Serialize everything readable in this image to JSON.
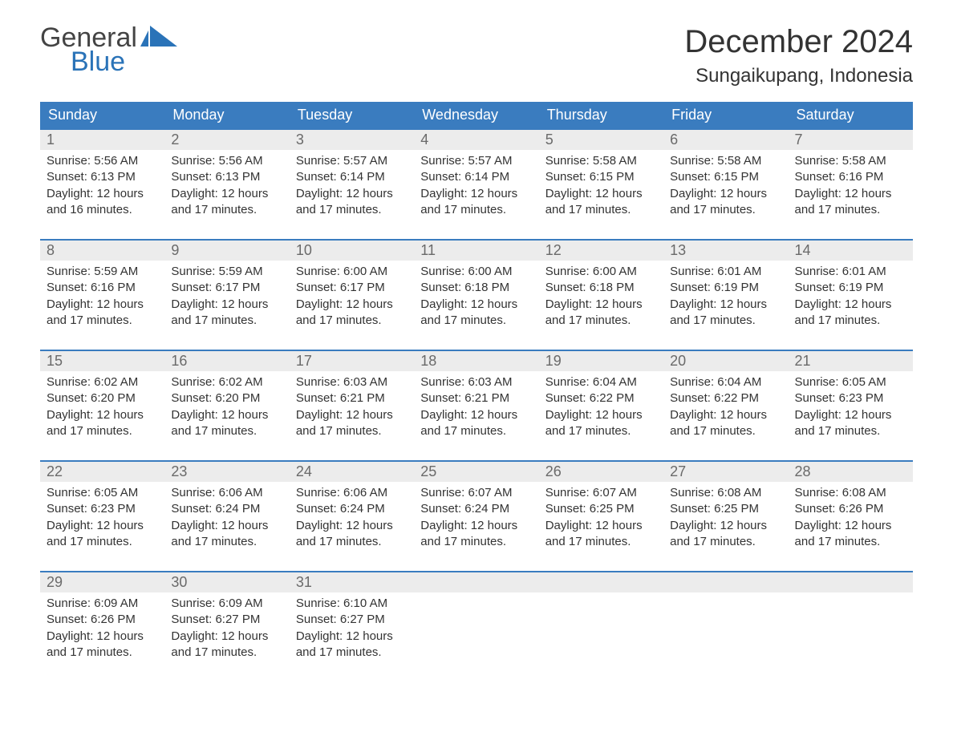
{
  "brand": {
    "word1": "General",
    "word2": "Blue"
  },
  "title": "December 2024",
  "location": "Sungaikupang, Indonesia",
  "colors": {
    "header_bg": "#3a7cbf",
    "header_text": "#ffffff",
    "daynum_bg": "#ececec",
    "daynum_text": "#6a6a6a",
    "week_border": "#3a7cbf",
    "body_text": "#333333",
    "brand_blue": "#2a73b8",
    "brand_gray": "#444444",
    "page_bg": "#ffffff"
  },
  "typography": {
    "title_fontsize_pt": 30,
    "location_fontsize_pt": 18,
    "header_fontsize_pt": 14,
    "daynum_fontsize_pt": 14,
    "detail_fontsize_pt": 11,
    "font_family": "Arial"
  },
  "layout": {
    "columns": 7,
    "rows": 5,
    "week_starts": "Sunday",
    "aspect_w": 1188,
    "aspect_h": 918
  },
  "weekdays": [
    "Sunday",
    "Monday",
    "Tuesday",
    "Wednesday",
    "Thursday",
    "Friday",
    "Saturday"
  ],
  "days": [
    {
      "n": "1",
      "sunrise": "Sunrise: 5:56 AM",
      "sunset": "Sunset: 6:13 PM",
      "daylight1": "Daylight: 12 hours",
      "daylight2": "and 16 minutes."
    },
    {
      "n": "2",
      "sunrise": "Sunrise: 5:56 AM",
      "sunset": "Sunset: 6:13 PM",
      "daylight1": "Daylight: 12 hours",
      "daylight2": "and 17 minutes."
    },
    {
      "n": "3",
      "sunrise": "Sunrise: 5:57 AM",
      "sunset": "Sunset: 6:14 PM",
      "daylight1": "Daylight: 12 hours",
      "daylight2": "and 17 minutes."
    },
    {
      "n": "4",
      "sunrise": "Sunrise: 5:57 AM",
      "sunset": "Sunset: 6:14 PM",
      "daylight1": "Daylight: 12 hours",
      "daylight2": "and 17 minutes."
    },
    {
      "n": "5",
      "sunrise": "Sunrise: 5:58 AM",
      "sunset": "Sunset: 6:15 PM",
      "daylight1": "Daylight: 12 hours",
      "daylight2": "and 17 minutes."
    },
    {
      "n": "6",
      "sunrise": "Sunrise: 5:58 AM",
      "sunset": "Sunset: 6:15 PM",
      "daylight1": "Daylight: 12 hours",
      "daylight2": "and 17 minutes."
    },
    {
      "n": "7",
      "sunrise": "Sunrise: 5:58 AM",
      "sunset": "Sunset: 6:16 PM",
      "daylight1": "Daylight: 12 hours",
      "daylight2": "and 17 minutes."
    },
    {
      "n": "8",
      "sunrise": "Sunrise: 5:59 AM",
      "sunset": "Sunset: 6:16 PM",
      "daylight1": "Daylight: 12 hours",
      "daylight2": "and 17 minutes."
    },
    {
      "n": "9",
      "sunrise": "Sunrise: 5:59 AM",
      "sunset": "Sunset: 6:17 PM",
      "daylight1": "Daylight: 12 hours",
      "daylight2": "and 17 minutes."
    },
    {
      "n": "10",
      "sunrise": "Sunrise: 6:00 AM",
      "sunset": "Sunset: 6:17 PM",
      "daylight1": "Daylight: 12 hours",
      "daylight2": "and 17 minutes."
    },
    {
      "n": "11",
      "sunrise": "Sunrise: 6:00 AM",
      "sunset": "Sunset: 6:18 PM",
      "daylight1": "Daylight: 12 hours",
      "daylight2": "and 17 minutes."
    },
    {
      "n": "12",
      "sunrise": "Sunrise: 6:00 AM",
      "sunset": "Sunset: 6:18 PM",
      "daylight1": "Daylight: 12 hours",
      "daylight2": "and 17 minutes."
    },
    {
      "n": "13",
      "sunrise": "Sunrise: 6:01 AM",
      "sunset": "Sunset: 6:19 PM",
      "daylight1": "Daylight: 12 hours",
      "daylight2": "and 17 minutes."
    },
    {
      "n": "14",
      "sunrise": "Sunrise: 6:01 AM",
      "sunset": "Sunset: 6:19 PM",
      "daylight1": "Daylight: 12 hours",
      "daylight2": "and 17 minutes."
    },
    {
      "n": "15",
      "sunrise": "Sunrise: 6:02 AM",
      "sunset": "Sunset: 6:20 PM",
      "daylight1": "Daylight: 12 hours",
      "daylight2": "and 17 minutes."
    },
    {
      "n": "16",
      "sunrise": "Sunrise: 6:02 AM",
      "sunset": "Sunset: 6:20 PM",
      "daylight1": "Daylight: 12 hours",
      "daylight2": "and 17 minutes."
    },
    {
      "n": "17",
      "sunrise": "Sunrise: 6:03 AM",
      "sunset": "Sunset: 6:21 PM",
      "daylight1": "Daylight: 12 hours",
      "daylight2": "and 17 minutes."
    },
    {
      "n": "18",
      "sunrise": "Sunrise: 6:03 AM",
      "sunset": "Sunset: 6:21 PM",
      "daylight1": "Daylight: 12 hours",
      "daylight2": "and 17 minutes."
    },
    {
      "n": "19",
      "sunrise": "Sunrise: 6:04 AM",
      "sunset": "Sunset: 6:22 PM",
      "daylight1": "Daylight: 12 hours",
      "daylight2": "and 17 minutes."
    },
    {
      "n": "20",
      "sunrise": "Sunrise: 6:04 AM",
      "sunset": "Sunset: 6:22 PM",
      "daylight1": "Daylight: 12 hours",
      "daylight2": "and 17 minutes."
    },
    {
      "n": "21",
      "sunrise": "Sunrise: 6:05 AM",
      "sunset": "Sunset: 6:23 PM",
      "daylight1": "Daylight: 12 hours",
      "daylight2": "and 17 minutes."
    },
    {
      "n": "22",
      "sunrise": "Sunrise: 6:05 AM",
      "sunset": "Sunset: 6:23 PM",
      "daylight1": "Daylight: 12 hours",
      "daylight2": "and 17 minutes."
    },
    {
      "n": "23",
      "sunrise": "Sunrise: 6:06 AM",
      "sunset": "Sunset: 6:24 PM",
      "daylight1": "Daylight: 12 hours",
      "daylight2": "and 17 minutes."
    },
    {
      "n": "24",
      "sunrise": "Sunrise: 6:06 AM",
      "sunset": "Sunset: 6:24 PM",
      "daylight1": "Daylight: 12 hours",
      "daylight2": "and 17 minutes."
    },
    {
      "n": "25",
      "sunrise": "Sunrise: 6:07 AM",
      "sunset": "Sunset: 6:24 PM",
      "daylight1": "Daylight: 12 hours",
      "daylight2": "and 17 minutes."
    },
    {
      "n": "26",
      "sunrise": "Sunrise: 6:07 AM",
      "sunset": "Sunset: 6:25 PM",
      "daylight1": "Daylight: 12 hours",
      "daylight2": "and 17 minutes."
    },
    {
      "n": "27",
      "sunrise": "Sunrise: 6:08 AM",
      "sunset": "Sunset: 6:25 PM",
      "daylight1": "Daylight: 12 hours",
      "daylight2": "and 17 minutes."
    },
    {
      "n": "28",
      "sunrise": "Sunrise: 6:08 AM",
      "sunset": "Sunset: 6:26 PM",
      "daylight1": "Daylight: 12 hours",
      "daylight2": "and 17 minutes."
    },
    {
      "n": "29",
      "sunrise": "Sunrise: 6:09 AM",
      "sunset": "Sunset: 6:26 PM",
      "daylight1": "Daylight: 12 hours",
      "daylight2": "and 17 minutes."
    },
    {
      "n": "30",
      "sunrise": "Sunrise: 6:09 AM",
      "sunset": "Sunset: 6:27 PM",
      "daylight1": "Daylight: 12 hours",
      "daylight2": "and 17 minutes."
    },
    {
      "n": "31",
      "sunrise": "Sunrise: 6:10 AM",
      "sunset": "Sunset: 6:27 PM",
      "daylight1": "Daylight: 12 hours",
      "daylight2": "and 17 minutes."
    }
  ]
}
